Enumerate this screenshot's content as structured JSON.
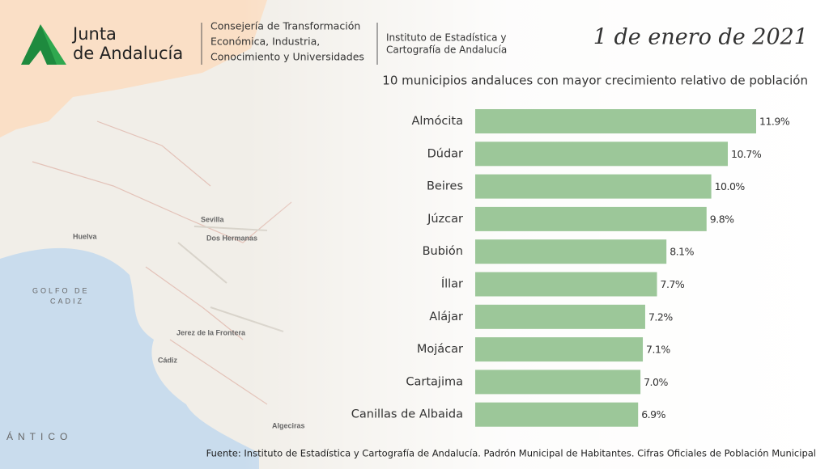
{
  "header": {
    "logo": [
      "Junta",
      "de Andalucía"
    ],
    "department": [
      "Consejería de Transformación",
      "Económica, Industria,",
      "Conocimiento y Universidades"
    ],
    "institute": [
      "Instituto de Estadística y",
      "Cartografía de Andalucía"
    ],
    "date": "1 de enero de 2021"
  },
  "map_labels": [
    "Sevilla",
    "Huelva",
    "Dos Hermanas",
    "GOLFO DE",
    "CADIZ",
    "Jerez de la Frontera",
    "Cádiz",
    "Algeciras",
    "ÁNTICO"
  ],
  "chart_data": {
    "type": "bar",
    "orientation": "horizontal",
    "title": "10 municipios andaluces con mayor crecimiento relativo de población",
    "categories": [
      "Almócita",
      "Dúdar",
      "Beires",
      "Júzcar",
      "Bubión",
      "Íllar",
      "Alájar",
      "Mojácar",
      "Cartajima",
      "Canillas de Albaida"
    ],
    "values": [
      11.9,
      10.7,
      10.0,
      9.8,
      8.1,
      7.7,
      7.2,
      7.1,
      7.0,
      6.9
    ],
    "value_labels": [
      "11.9%",
      "10.7%",
      "10.0%",
      "9.8%",
      "8.1%",
      "7.7%",
      "7.2%",
      "7.1%",
      "7.0%",
      "6.9%"
    ],
    "color": "#9cc799"
  },
  "source": "Fuente: Instituto de Estadística y Cartografía de Andalucía. Padrón Municipal de Habitantes. Cifras Oficiales de Población Municipal"
}
